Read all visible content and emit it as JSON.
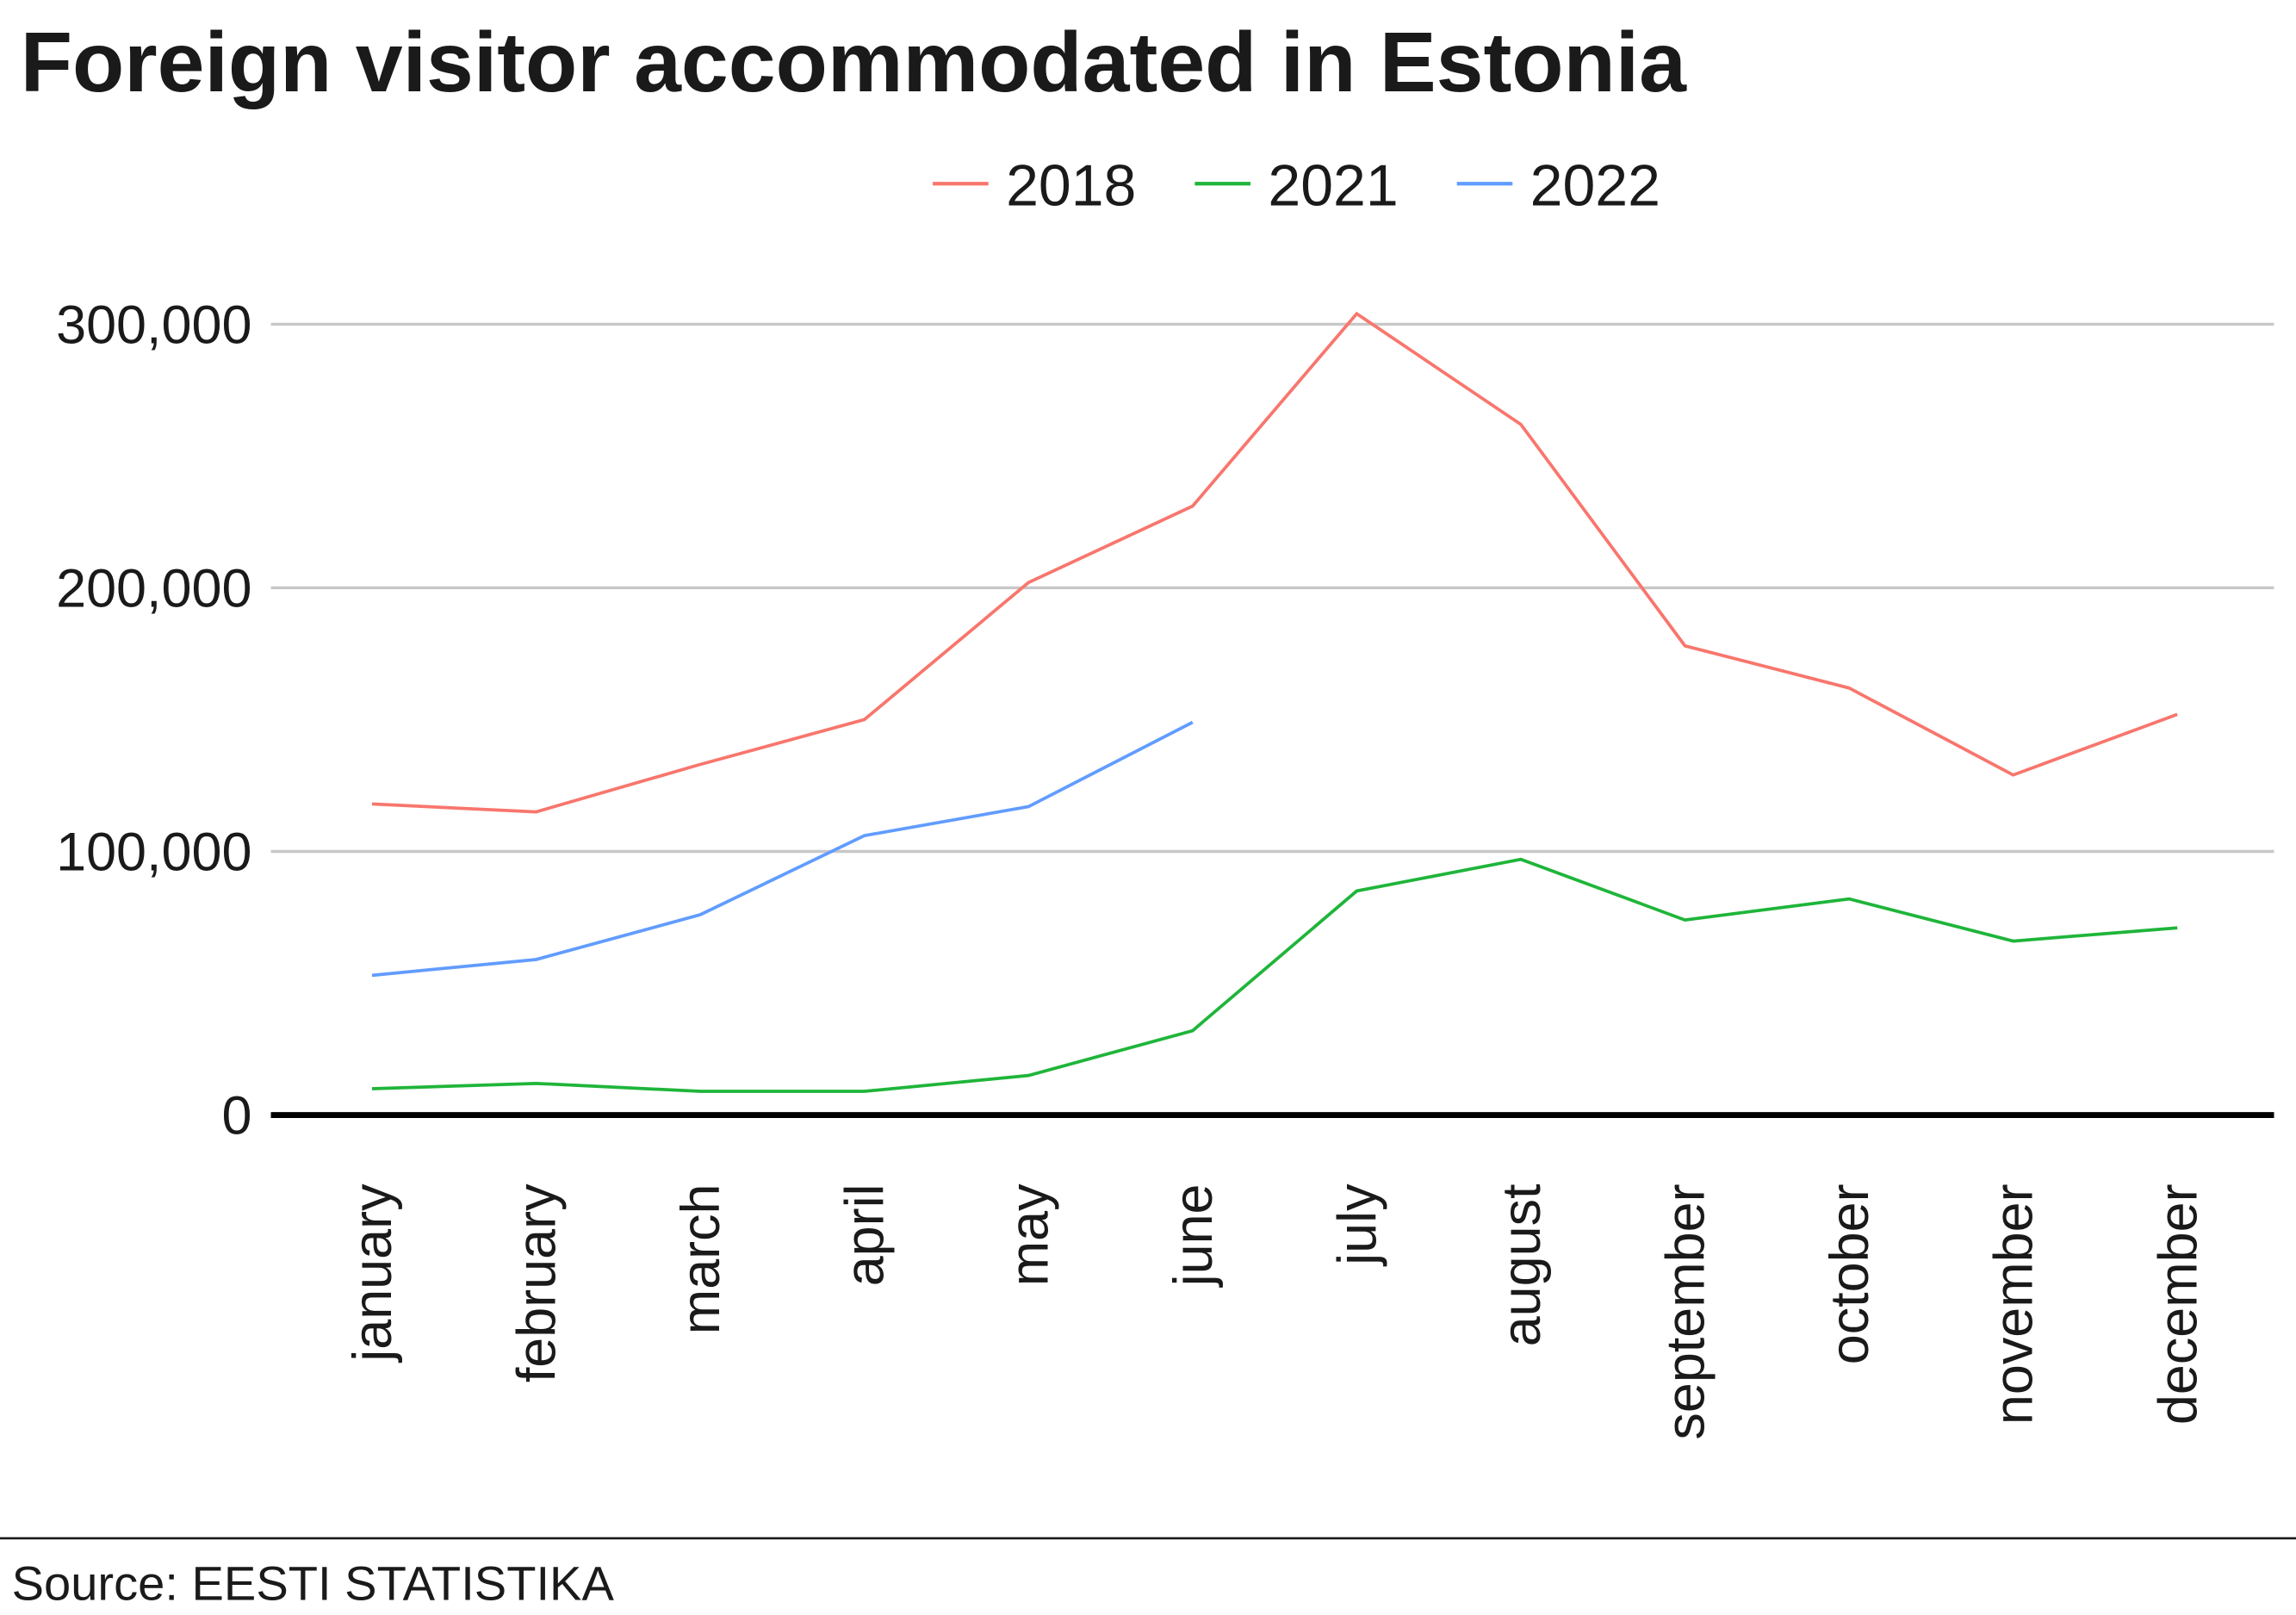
{
  "chart_data": {
    "type": "line",
    "title": "Foreign visitor accommodated in Estonia",
    "source": "Source: EESTI STATISTIKA",
    "categories": [
      "january",
      "february",
      "march",
      "april",
      "may",
      "june",
      "july",
      "august",
      "september",
      "october",
      "november",
      "december"
    ],
    "series": [
      {
        "name": "2018",
        "color": "#f8766d",
        "values": [
          118000,
          115000,
          133000,
          150000,
          202000,
          231000,
          304000,
          262000,
          178000,
          162000,
          129000,
          152000
        ]
      },
      {
        "name": "2021",
        "color": "#1fb53a",
        "values": [
          10000,
          12000,
          9000,
          9000,
          15000,
          32000,
          85000,
          97000,
          74000,
          82000,
          66000,
          71000
        ]
      },
      {
        "name": "2022",
        "color": "#619cff",
        "values": [
          53000,
          59000,
          76000,
          106000,
          117000,
          149000,
          null,
          null,
          null,
          null,
          null,
          null
        ]
      }
    ],
    "ylim": [
      0,
      320000
    ],
    "yticks": [
      0,
      {
        "value": 100000,
        "label": "100,000"
      },
      {
        "value": 200000,
        "label": "200,000"
      },
      {
        "value": 300000,
        "label": "300,000"
      }
    ],
    "grid": true,
    "legend": "top"
  }
}
